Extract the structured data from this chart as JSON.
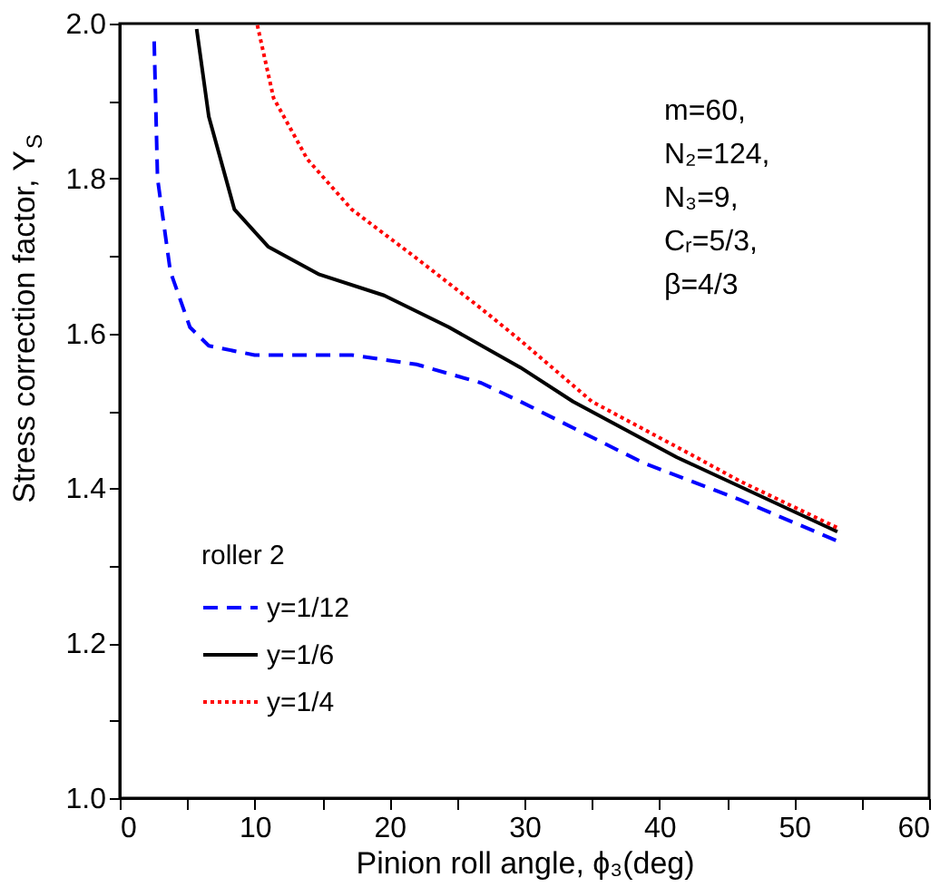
{
  "chart_data": {
    "type": "line",
    "xlabel": "Pinion roll angle, ϕ₃(deg)",
    "ylabel": "Stress correction factor, Y$_{S}$",
    "legend_title": "roller 2",
    "legend": "bottom left",
    "grid": false,
    "xlim": [
      0,
      60
    ],
    "ylim": [
      1.0,
      2.0
    ],
    "xticks": [
      0,
      {
        "value": 5,
        "label": null
      },
      10,
      {
        "value": 15,
        "label": null
      },
      20,
      {
        "value": 25,
        "label": null
      },
      30,
      {
        "value": 35,
        "label": null
      },
      40,
      {
        "value": 45,
        "label": null
      },
      50,
      {
        "value": 55,
        "label": null
      },
      60
    ],
    "yticks": [
      {
        "value": 1.0,
        "label": "1.0"
      },
      {
        "value": 1.1,
        "label": null
      },
      1.2,
      {
        "value": 1.3,
        "label": null
      },
      1.4,
      {
        "value": 1.5,
        "label": null
      },
      1.6,
      {
        "value": 1.7,
        "label": null
      },
      1.8,
      {
        "value": 1.9,
        "label": null
      },
      {
        "value": 2.0,
        "label": "2.0"
      }
    ],
    "annotations": [
      "m=60,\nN₂=124,\nN₃=9,\nCᵣ=5/3,\nβ=4/3"
    ],
    "series": [
      {
        "name": "y=1/12",
        "color": "#0000ff",
        "line_style": "dashed",
        "x": [
          2.55,
          2.8,
          3.75,
          5.2,
          6.6,
          10,
          17.2,
          22,
          26.8,
          29.7,
          38.8,
          46,
          53.2
        ],
        "values": [
          1.977,
          1.8,
          1.68,
          1.608,
          1.584,
          1.572,
          1.572,
          1.56,
          1.536,
          1.512,
          1.433,
          1.385,
          1.332
        ]
      },
      {
        "name": "y=1/6",
        "color": "#000000",
        "line_style": "solid",
        "x": [
          5.7,
          6.6,
          8.5,
          11,
          14.8,
          19.6,
          24.4,
          29.7,
          33.6,
          41.3,
          53.2
        ],
        "values": [
          1.993,
          1.88,
          1.76,
          1.712,
          1.676,
          1.649,
          1.608,
          1.556,
          1.512,
          1.44,
          1.344
        ]
      },
      {
        "name": "y=1/4",
        "color": "#ff0000",
        "line_style": "dotted",
        "x": [
          10.2,
          11.4,
          13.9,
          17.2,
          22,
          26.8,
          29.7,
          35,
          42.2,
          46,
          53.2
        ],
        "values": [
          1.998,
          1.904,
          1.825,
          1.76,
          1.697,
          1.632,
          1.591,
          1.512,
          1.445,
          1.409,
          1.349
        ]
      }
    ]
  }
}
